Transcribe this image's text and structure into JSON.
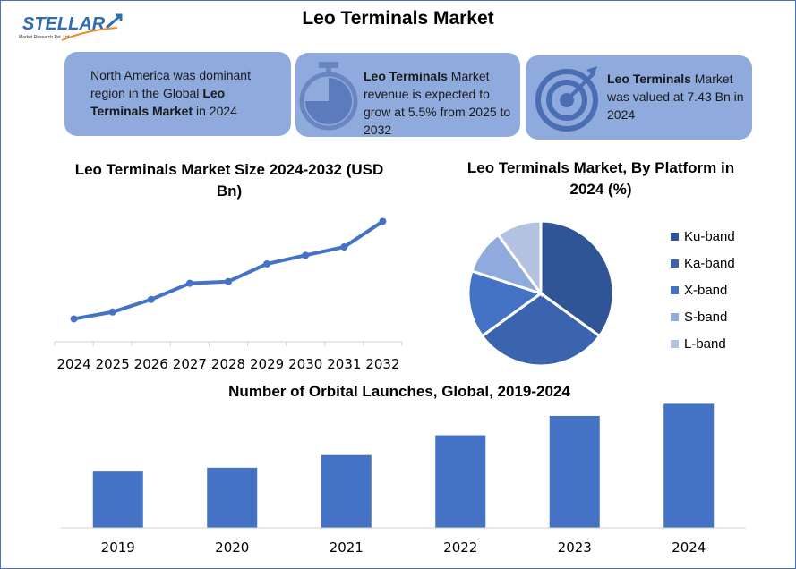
{
  "header": {
    "title": "Leo Terminals Market",
    "logo_text": "STELLAR",
    "logo_subtext": "Market Research Pvt. Ltd."
  },
  "boxes": [
    {
      "pre": "North America was dominant region in the Global ",
      "bold": "Leo Terminals Market",
      "post": " in 2024",
      "icon": "none"
    },
    {
      "bold": "Leo Terminals",
      "mid": " Market",
      "post": " revenue is expected to grow at 5.5% from 2025 to 2032",
      "icon": "stopwatch-icon"
    },
    {
      "bold": "Leo Terminals",
      "mid": " Market",
      "post": " was valued at 7.43 Bn in 2024",
      "icon": "target-icon"
    }
  ],
  "colors": {
    "box": "#8faadc",
    "line": "#4472c4",
    "bar": "#4472c4"
  },
  "chart_data": [
    {
      "type": "line",
      "title": "Leo Terminals Market Size 2024-2032 (USD Bn)",
      "categories": [
        "2024",
        "2025",
        "2026",
        "2027",
        "2028",
        "2029",
        "2030",
        "2031",
        "2032"
      ],
      "values": [
        7.43,
        7.71,
        8.22,
        8.88,
        8.95,
        9.67,
        10.02,
        10.36,
        11.4
      ],
      "ylim": [
        6.5,
        12
      ],
      "grid": false,
      "y_axis_shown": false
    },
    {
      "type": "pie",
      "title": "Leo Terminals Market, By Platform in 2024 (%)",
      "categories": [
        "Ku-band",
        "Ka-band",
        "X-band",
        "S-band",
        "L-band"
      ],
      "values": [
        35,
        30,
        15,
        10,
        10
      ],
      "colors": [
        "#2f5597",
        "#3a64ad",
        "#4472c4",
        "#8faadc",
        "#b4c2e2"
      ],
      "legend": "right"
    },
    {
      "type": "bar",
      "title": "Number of Orbital Launches, Global, 2019-2024",
      "categories": [
        "2019",
        "2020",
        "2021",
        "2022",
        "2023",
        "2024"
      ],
      "values": [
        102,
        109,
        132,
        168,
        203,
        225
      ],
      "ylim": [
        0,
        250
      ],
      "grid": false,
      "y_axis_shown": false
    }
  ]
}
